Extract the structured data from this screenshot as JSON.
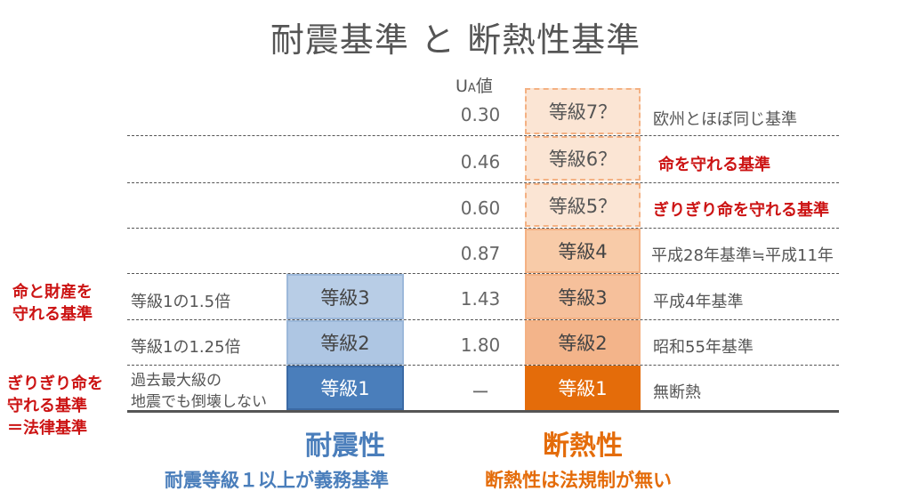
{
  "title": "耐震基準 と 断熱性基準",
  "ua_header": {
    "main": "U",
    "sub": "A",
    "suffix": "値"
  },
  "ua_values": [
    "0.30",
    "0.46",
    "0.60",
    "0.87",
    "1.43",
    "1.80",
    "ー"
  ],
  "insulation": {
    "grades": [
      "等級7？",
      "等級6？",
      "等級5？",
      "等級4",
      "等級3",
      "等級2",
      "等級1"
    ],
    "notes": [
      "欧州とほぼ同じ基準",
      "命を守れる基準",
      "ぎりぎり命を守れる基準",
      "平成28年基準≒平成11年",
      "平成4年基準",
      "昭和55年基準",
      "無断熱"
    ],
    "caption": "断熱性",
    "subcaption": "断熱性は法規制が無い",
    "colors": {
      "grade7_6_5": "#fbe5d4",
      "grade4": "#f8cba8",
      "grade3": "#f6c09b",
      "grade2": "#f3b48a",
      "grade1": "#e46c0a",
      "caption": "#e46c0a"
    }
  },
  "seismic": {
    "grades": [
      "等級3",
      "等級2",
      "等級1"
    ],
    "notes": [
      "等級1の1.5倍",
      "等級1の1.25倍",
      "過去最大級の",
      "地震でも倒壊しない"
    ],
    "caption": "耐震性",
    "subcaption": "耐震等級１以上が義務基準",
    "colors": {
      "grade3": "#b8cde6",
      "grade2": "#aec6e3",
      "grade1": "#4a7ebb",
      "caption": "#4a7ebb"
    }
  },
  "left_notes": {
    "top": [
      "命と財産を",
      "守れる基準"
    ],
    "bottom": [
      "ぎりぎり命を",
      "守れる基準",
      "＝法律基準"
    ]
  }
}
